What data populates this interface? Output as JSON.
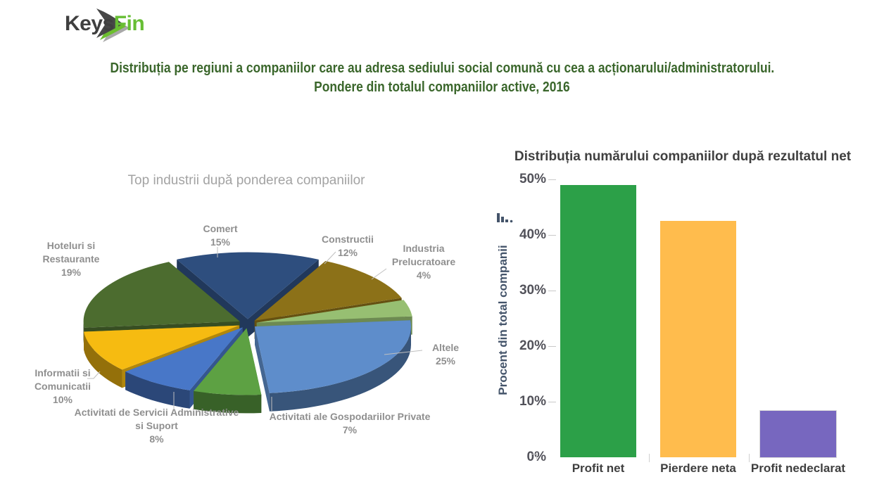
{
  "logo": {
    "brand_prefix": "Keys",
    "brand_suffix": "Fin",
    "accent_color": "#67be34"
  },
  "header": {
    "title_line1": "Distribuția pe regiuni a companiilor care au adresa sediului social comună cu cea a acționarului/administratorului.",
    "title_line2": "Pondere din totalul companiilor active, 2016",
    "title_color": "#3a662b"
  },
  "chart_data": [
    {
      "type": "pie",
      "style": "3d-exploded",
      "title": "Top industrii după ponderea companiilor",
      "unit": "%",
      "slices": [
        {
          "label": "Comert",
          "value": 15,
          "color": "#2e4e7e"
        },
        {
          "label": "Constructii",
          "value": 12,
          "color": "#8c7118"
        },
        {
          "label": "Industria Prelucratoare",
          "value": 4,
          "color": "#97bf72"
        },
        {
          "label": "Altele",
          "value": 25,
          "color": "#5e8dcb"
        },
        {
          "label": "Activitati ale Gospodariilor Private",
          "value": 7,
          "color": "#5da143"
        },
        {
          "label": "Activitati de Servicii Administrative si Suport",
          "value": 8,
          "color": "#4877c8"
        },
        {
          "label": "Informatii si Comunicatii",
          "value": 10,
          "color": "#f6bb11"
        },
        {
          "label": "Hoteluri si Restaurante",
          "value": 19,
          "color": "#4c6c2f"
        }
      ]
    },
    {
      "type": "bar",
      "title": "Distribuția numărului companiilor după rezultatul net",
      "ylabel": "Procent din total companii",
      "ylim": [
        0,
        50
      ],
      "yticks": [
        "0%",
        "10%",
        "20%",
        "30%",
        "40%",
        "50%"
      ],
      "grid": false,
      "categories": [
        "Profit net",
        "Pierdere neta",
        "Profit nedeclarat"
      ],
      "values": [
        49,
        42.5,
        8.3
      ],
      "colors": [
        "#2ca048",
        "#ffbc4d",
        "#7767bf"
      ]
    }
  ]
}
